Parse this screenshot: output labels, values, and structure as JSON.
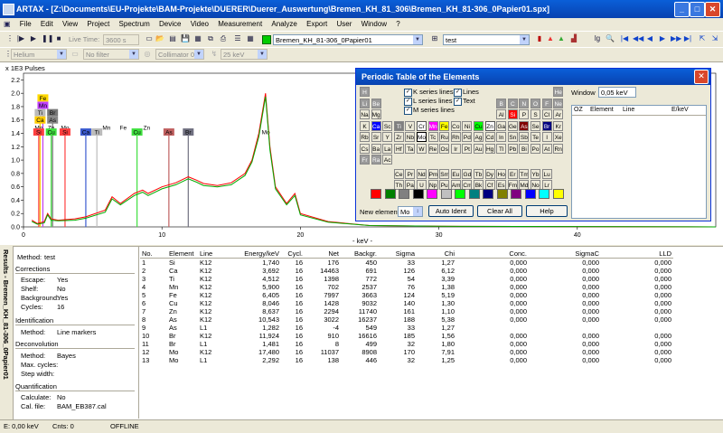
{
  "window": {
    "title": "ARTAX - [Z:\\Documents\\EU-Projekte\\BAM-Projekte\\DUERER\\Duerer_Auswertung\\Bremen_KH_81_306\\Bremen_KH_81-306_0Papier01.spx]"
  },
  "menu": [
    "File",
    "Edit",
    "View",
    "Project",
    "Spectrum",
    "Device",
    "Video",
    "Measurement",
    "Analyze",
    "Export",
    "User",
    "Window",
    "?"
  ],
  "toolbar": {
    "live_time_label": "Live Time:",
    "live_time_value": "3600 s",
    "spectrum_select": "Bremen_KH_81-306_0Papier01",
    "project_select": "test",
    "gas_select": "Helium",
    "filter_select": "No filter",
    "collimator_select": "Collimator 0.200",
    "voltage_select": "25 keV"
  },
  "chart_data": {
    "type": "line",
    "title": "",
    "ylabel": "x 1E3 Pulses",
    "xlabel": "- keV -",
    "xlim": [
      0,
      50
    ],
    "ylim": [
      0,
      2.3
    ],
    "x_ticks": [
      0,
      10,
      20,
      30,
      40
    ],
    "y_ticks": [
      0.0,
      0.2,
      0.4,
      0.6,
      0.8,
      1.0,
      1.2,
      1.4,
      1.6,
      1.8,
      2.0,
      2.2
    ],
    "y_tick_labels": [
      "0.0",
      "0.2",
      "0.4",
      "0.6",
      "0.8",
      "1.0",
      "1.2",
      "1.4",
      "1.6",
      "1.8",
      "2.0",
      "2.2"
    ],
    "series": [
      {
        "color": "#ff0000",
        "points": [
          [
            0.6,
            0.1
          ],
          [
            1.0,
            0.05
          ],
          [
            1.5,
            0.08
          ],
          [
            1.74,
            0.2
          ],
          [
            2.0,
            0.12
          ],
          [
            2.5,
            0.1
          ],
          [
            3.7,
            0.12
          ],
          [
            4.5,
            0.15
          ],
          [
            5.9,
            0.25
          ],
          [
            6.4,
            0.45
          ],
          [
            7.0,
            0.35
          ],
          [
            8.0,
            0.5
          ],
          [
            8.6,
            0.55
          ],
          [
            9.0,
            0.5
          ],
          [
            10.0,
            0.6
          ],
          [
            11.0,
            0.66
          ],
          [
            11.9,
            0.75
          ],
          [
            12.5,
            0.7
          ],
          [
            13.0,
            0.65
          ],
          [
            14.0,
            0.62
          ],
          [
            15.0,
            0.66
          ],
          [
            16.0,
            0.8
          ],
          [
            16.5,
            1.0
          ],
          [
            17.0,
            1.4
          ],
          [
            17.48,
            2.0
          ],
          [
            17.8,
            1.2
          ],
          [
            18.2,
            0.6
          ],
          [
            19.0,
            0.35
          ],
          [
            19.6,
            0.5
          ],
          [
            20.0,
            0.2
          ],
          [
            22,
            0.08
          ],
          [
            25,
            0.02
          ],
          [
            30,
            0.01
          ],
          [
            50,
            0.0
          ]
        ]
      },
      {
        "color": "#00aa00",
        "points": [
          [
            0.6,
            0.08
          ],
          [
            1.0,
            0.04
          ],
          [
            1.5,
            0.06
          ],
          [
            1.74,
            0.18
          ],
          [
            2.0,
            0.1
          ],
          [
            2.5,
            0.09
          ],
          [
            3.7,
            0.1
          ],
          [
            4.5,
            0.13
          ],
          [
            5.9,
            0.22
          ],
          [
            6.4,
            0.42
          ],
          [
            7.0,
            0.33
          ],
          [
            8.0,
            0.47
          ],
          [
            8.6,
            0.52
          ],
          [
            9.0,
            0.47
          ],
          [
            10.0,
            0.57
          ],
          [
            11.0,
            0.63
          ],
          [
            11.9,
            0.72
          ],
          [
            12.5,
            0.67
          ],
          [
            13.0,
            0.62
          ],
          [
            14.0,
            0.6
          ],
          [
            15.0,
            0.63
          ],
          [
            16.0,
            0.77
          ],
          [
            16.5,
            0.97
          ],
          [
            17.0,
            1.35
          ],
          [
            17.48,
            1.95
          ],
          [
            17.8,
            1.15
          ],
          [
            18.2,
            0.57
          ],
          [
            19.0,
            0.33
          ],
          [
            19.6,
            0.47
          ],
          [
            20.0,
            0.18
          ],
          [
            22,
            0.07
          ],
          [
            25,
            0.02
          ],
          [
            30,
            0.01
          ],
          [
            50,
            0.0
          ]
        ]
      }
    ],
    "element_markers": [
      {
        "label": "Fe",
        "x": 1.4,
        "y": 1.93,
        "color": "#ffd800"
      },
      {
        "label": "Mn",
        "x": 1.4,
        "y": 1.82,
        "color": "#c040ff"
      },
      {
        "label": "Ti",
        "x": 1.2,
        "y": 1.71,
        "color": "#bbbbbb"
      },
      {
        "label": "Br",
        "x": 2.1,
        "y": 1.71,
        "color": "#777777"
      },
      {
        "label": "Ca",
        "x": 1.2,
        "y": 1.6,
        "color": "#ffcc00"
      },
      {
        "label": "As",
        "x": 2.1,
        "y": 1.6,
        "color": "#888888"
      },
      {
        "label": "Mo",
        "x": 1.1,
        "y": 1.49,
        "color": "none"
      },
      {
        "label": "Zn",
        "x": 2.0,
        "y": 1.49,
        "color": "none"
      },
      {
        "label": "Mo",
        "x": 3.0,
        "y": 1.49,
        "color": "none"
      },
      {
        "label": "Si",
        "x": 1.1,
        "y": 1.42,
        "color": "#ff4040"
      },
      {
        "label": "Cu",
        "x": 2.0,
        "y": 1.42,
        "color": "#40e040"
      },
      {
        "label": "Si",
        "x": 3.0,
        "y": 1.42,
        "color": "#ff4040"
      },
      {
        "label": "Mn",
        "x": 6.0,
        "y": 1.49,
        "color": "none"
      },
      {
        "label": "Zn",
        "x": 8.9,
        "y": 1.49,
        "color": "none"
      },
      {
        "label": "Ca",
        "x": 4.5,
        "y": 1.42,
        "color": "#3b5bd0"
      },
      {
        "label": "Ti",
        "x": 5.3,
        "y": 1.42,
        "color": "#bbbbbb"
      },
      {
        "label": "Fe",
        "x": 7.2,
        "y": 1.49,
        "color": "none"
      },
      {
        "label": "Cu",
        "x": 8.2,
        "y": 1.42,
        "color": "#40e040"
      },
      {
        "label": "As",
        "x": 10.5,
        "y": 1.42,
        "color": "#c06060"
      },
      {
        "label": "Br",
        "x": 11.9,
        "y": 1.42,
        "color": "#707080"
      },
      {
        "label": "Mo",
        "x": 17.5,
        "y": 1.42,
        "color": "none"
      }
    ]
  },
  "dialog": {
    "title": "Periodic Table of the Elements",
    "checks": [
      {
        "label": "K series lines",
        "checked": true
      },
      {
        "label": "L series lines",
        "checked": true
      },
      {
        "label": "M series lines",
        "checked": true
      },
      {
        "label": "Lines",
        "checked": true
      },
      {
        "label": "Text",
        "checked": true
      }
    ],
    "window_label": "Window",
    "window_value": "0,05 keV",
    "table_headers": [
      "OZ",
      "Element",
      "Line",
      "E/keV"
    ],
    "new_element_label": "New element:",
    "new_element_value": "Mo",
    "auto_ident": "Auto Ident",
    "clear_all": "Clear All",
    "help": "Help",
    "swatches": [
      "#ff0000",
      "#008000",
      "#808080",
      "#000000",
      "#ff00ff",
      "#c0c0c0",
      "#00ff00",
      "#008080",
      "#000080",
      "#808000",
      "#800080",
      "#0000ff",
      "#00ffff",
      "#ffff00"
    ]
  },
  "elements": [
    {
      "s": "H",
      "r": 0,
      "c": 0,
      "st": "g"
    },
    {
      "s": "He",
      "r": 0,
      "c": 17,
      "st": "g"
    },
    {
      "s": "Li",
      "r": 1,
      "c": 0,
      "st": "g"
    },
    {
      "s": "Be",
      "r": 1,
      "c": 1,
      "st": "g"
    },
    {
      "s": "B",
      "r": 1,
      "c": 12,
      "st": "g"
    },
    {
      "s": "C",
      "r": 1,
      "c": 13,
      "st": "g"
    },
    {
      "s": "N",
      "r": 1,
      "c": 14,
      "st": "g"
    },
    {
      "s": "O",
      "r": 1,
      "c": 15,
      "st": "g"
    },
    {
      "s": "F",
      "r": 1,
      "c": 16,
      "st": "g"
    },
    {
      "s": "Ne",
      "r": 1,
      "c": 17,
      "st": "g"
    },
    {
      "s": "Na",
      "r": 2,
      "c": 0
    },
    {
      "s": "Mg",
      "r": 2,
      "c": 1
    },
    {
      "s": "Al",
      "r": 2,
      "c": 12
    },
    {
      "s": "Si",
      "r": 2,
      "c": 13,
      "bg": "#ff0000",
      "fg": "#fff"
    },
    {
      "s": "P",
      "r": 2,
      "c": 14
    },
    {
      "s": "S",
      "r": 2,
      "c": 15
    },
    {
      "s": "Cl",
      "r": 2,
      "c": 16
    },
    {
      "s": "Ar",
      "r": 2,
      "c": 17
    },
    {
      "s": "K",
      "r": 3,
      "c": 0
    },
    {
      "s": "Ca",
      "r": 3,
      "c": 1,
      "bg": "#0000ff",
      "fg": "#fff"
    },
    {
      "s": "Sc",
      "r": 3,
      "c": 2
    },
    {
      "s": "Ti",
      "r": 3,
      "c": 3,
      "bg": "#808080",
      "fg": "#fff"
    },
    {
      "s": "V",
      "r": 3,
      "c": 4
    },
    {
      "s": "Cr",
      "r": 3,
      "c": 5,
      "st": "b"
    },
    {
      "s": "Mn",
      "r": 3,
      "c": 6,
      "bg": "#ff00ff",
      "fg": "#fff"
    },
    {
      "s": "Fe",
      "r": 3,
      "c": 7,
      "bg": "#ffff00"
    },
    {
      "s": "Co",
      "r": 3,
      "c": 8
    },
    {
      "s": "Ni",
      "r": 3,
      "c": 9
    },
    {
      "s": "Cu",
      "r": 3,
      "c": 10,
      "bg": "#00ff00"
    },
    {
      "s": "Zn",
      "r": 3,
      "c": 11,
      "st": "b"
    },
    {
      "s": "Ga",
      "r": 3,
      "c": 12
    },
    {
      "s": "Ge",
      "r": 3,
      "c": 13
    },
    {
      "s": "As",
      "r": 3,
      "c": 14,
      "bg": "#800000",
      "fg": "#fff"
    },
    {
      "s": "Se",
      "r": 3,
      "c": 15
    },
    {
      "s": "Br",
      "r": 3,
      "c": 16,
      "bg": "#000080",
      "fg": "#fff"
    },
    {
      "s": "Kr",
      "r": 3,
      "c": 17
    },
    {
      "s": "Rb",
      "r": 4,
      "c": 0
    },
    {
      "s": "Sr",
      "r": 4,
      "c": 1
    },
    {
      "s": "Y",
      "r": 4,
      "c": 2
    },
    {
      "s": "Zr",
      "r": 4,
      "c": 3
    },
    {
      "s": "Nb",
      "r": 4,
      "c": 4
    },
    {
      "s": "Mo",
      "r": 4,
      "c": 5,
      "bg": "#fff",
      "bd": "#000"
    },
    {
      "s": "Tc",
      "r": 4,
      "c": 6
    },
    {
      "s": "Ru",
      "r": 4,
      "c": 7
    },
    {
      "s": "Rh",
      "r": 4,
      "c": 8
    },
    {
      "s": "Pd",
      "r": 4,
      "c": 9
    },
    {
      "s": "Ag",
      "r": 4,
      "c": 10
    },
    {
      "s": "Cd",
      "r": 4,
      "c": 11
    },
    {
      "s": "In",
      "r": 4,
      "c": 12
    },
    {
      "s": "Sn",
      "r": 4,
      "c": 13
    },
    {
      "s": "Sb",
      "r": 4,
      "c": 14
    },
    {
      "s": "Te",
      "r": 4,
      "c": 15
    },
    {
      "s": "I",
      "r": 4,
      "c": 16
    },
    {
      "s": "Xe",
      "r": 4,
      "c": 17
    },
    {
      "s": "Cs",
      "r": 5,
      "c": 0
    },
    {
      "s": "Ba",
      "r": 5,
      "c": 1
    },
    {
      "s": "La",
      "r": 5,
      "c": 2
    },
    {
      "s": "Hf",
      "r": 5,
      "c": 3
    },
    {
      "s": "Ta",
      "r": 5,
      "c": 4
    },
    {
      "s": "W",
      "r": 5,
      "c": 5
    },
    {
      "s": "Re",
      "r": 5,
      "c": 6
    },
    {
      "s": "Os",
      "r": 5,
      "c": 7
    },
    {
      "s": "Ir",
      "r": 5,
      "c": 8
    },
    {
      "s": "Pt",
      "r": 5,
      "c": 9
    },
    {
      "s": "Au",
      "r": 5,
      "c": 10
    },
    {
      "s": "Hg",
      "r": 5,
      "c": 11
    },
    {
      "s": "Tl",
      "r": 5,
      "c": 12
    },
    {
      "s": "Pb",
      "r": 5,
      "c": 13
    },
    {
      "s": "Bi",
      "r": 5,
      "c": 14
    },
    {
      "s": "Po",
      "r": 5,
      "c": 15
    },
    {
      "s": "At",
      "r": 5,
      "c": 16
    },
    {
      "s": "Rn",
      "r": 5,
      "c": 17
    },
    {
      "s": "Fr",
      "r": 6,
      "c": 0,
      "st": "g"
    },
    {
      "s": "Ra",
      "r": 6,
      "c": 1,
      "st": "g"
    },
    {
      "s": "Ac",
      "r": 6,
      "c": 2
    },
    {
      "s": "Ce",
      "r": 7,
      "c": 3
    },
    {
      "s": "Pr",
      "r": 7,
      "c": 4
    },
    {
      "s": "Nd",
      "r": 7,
      "c": 5
    },
    {
      "s": "Pm",
      "r": 7,
      "c": 6
    },
    {
      "s": "Sm",
      "r": 7,
      "c": 7
    },
    {
      "s": "Eu",
      "r": 7,
      "c": 8
    },
    {
      "s": "Gd",
      "r": 7,
      "c": 9
    },
    {
      "s": "Tb",
      "r": 7,
      "c": 10
    },
    {
      "s": "Dy",
      "r": 7,
      "c": 11
    },
    {
      "s": "Ho",
      "r": 7,
      "c": 12
    },
    {
      "s": "Er",
      "r": 7,
      "c": 13
    },
    {
      "s": "Tm",
      "r": 7,
      "c": 14
    },
    {
      "s": "Yb",
      "r": 7,
      "c": 15
    },
    {
      "s": "Lu",
      "r": 7,
      "c": 16
    },
    {
      "s": "Th",
      "r": 8,
      "c": 3
    },
    {
      "s": "Pa",
      "r": 8,
      "c": 4
    },
    {
      "s": "U",
      "r": 8,
      "c": 5
    },
    {
      "s": "Np",
      "r": 8,
      "c": 6
    },
    {
      "s": "Pu",
      "r": 8,
      "c": 7
    },
    {
      "s": "Am",
      "r": 8,
      "c": 8
    },
    {
      "s": "Cm",
      "r": 8,
      "c": 9
    },
    {
      "s": "Bk",
      "r": 8,
      "c": 10
    },
    {
      "s": "Cf",
      "r": 8,
      "c": 11
    },
    {
      "s": "Es",
      "r": 8,
      "c": 12
    },
    {
      "s": "Fm",
      "r": 8,
      "c": 13
    },
    {
      "s": "Md",
      "r": 8,
      "c": 14
    },
    {
      "s": "No",
      "r": 8,
      "c": 15
    },
    {
      "s": "Lr",
      "r": 8,
      "c": 16
    }
  ],
  "side_tab": "Results - Bremen_KH_81-306_0Papier01",
  "left_panel": {
    "method_label": "Method:",
    "method": "test",
    "corrections": "Corrections",
    "escape_label": "Escape:",
    "escape": "Yes",
    "shelf_label": "Shelf:",
    "shelf": "No",
    "background_label": "Background:",
    "background": "Yes",
    "cycles_label": "Cycles:",
    "cycles": "16",
    "identification": "Identification",
    "id_method_label": "Method:",
    "id_method": "Line markers",
    "deconvolution": "Deconvolution",
    "dc_method_label": "Method:",
    "dc_method": "Bayes",
    "max_cycles_label": "Max. cycles:",
    "step_width_label": "Step width:",
    "quantification": "Quantification",
    "calculate_label": "Calculate:",
    "calculate": "No",
    "cal_file_label": "Cal. file:",
    "cal_file": "BAM_EB387.cal"
  },
  "results": {
    "headers": [
      "No.",
      "Element",
      "Line",
      "Energy/keV",
      "Cycl.",
      "Net",
      "Backgr.",
      "Sigma",
      "Chi",
      "Conc.",
      "SigmaC",
      "LLD"
    ],
    "rows": [
      [
        "1",
        "Si",
        "K12",
        "1,740",
        "16",
        "176",
        "450",
        "33",
        "1,27",
        "0,000",
        "0,000",
        "0,000"
      ],
      [
        "2",
        "Ca",
        "K12",
        "3,692",
        "16",
        "14463",
        "691",
        "126",
        "6,12",
        "0,000",
        "0,000",
        "0,000"
      ],
      [
        "3",
        "Ti",
        "K12",
        "4,512",
        "16",
        "1398",
        "772",
        "54",
        "3,39",
        "0,000",
        "0,000",
        "0,000"
      ],
      [
        "4",
        "Mn",
        "K12",
        "5,900",
        "16",
        "702",
        "2537",
        "76",
        "1,38",
        "0,000",
        "0,000",
        "0,000"
      ],
      [
        "5",
        "Fe",
        "K12",
        "6,405",
        "16",
        "7997",
        "3663",
        "124",
        "5,19",
        "0,000",
        "0,000",
        "0,000"
      ],
      [
        "6",
        "Cu",
        "K12",
        "8,046",
        "16",
        "1428",
        "9032",
        "140",
        "1,30",
        "0,000",
        "0,000",
        "0,000"
      ],
      [
        "7",
        "Zn",
        "K12",
        "8,637",
        "16",
        "2294",
        "11740",
        "161",
        "1,10",
        "0,000",
        "0,000",
        "0,000"
      ],
      [
        "8",
        "As",
        "K12",
        "10,543",
        "16",
        "3022",
        "16237",
        "188",
        "5,38",
        "0,000",
        "0,000",
        "0,000"
      ],
      [
        "9",
        "As",
        "L1",
        "1,282",
        "16",
        "-4",
        "549",
        "33",
        "1,27",
        "",
        "",
        ""
      ],
      [
        "10",
        "Br",
        "K12",
        "11,924",
        "16",
        "910",
        "16616",
        "185",
        "1,56",
        "0,000",
        "0,000",
        "0,000"
      ],
      [
        "11",
        "Br",
        "L1",
        "1,481",
        "16",
        "8",
        "499",
        "32",
        "1,80",
        "0,000",
        "0,000",
        "0,000"
      ],
      [
        "12",
        "Mo",
        "K12",
        "17,480",
        "16",
        "11037",
        "8908",
        "170",
        "7,91",
        "0,000",
        "0,000",
        "0,000"
      ],
      [
        "13",
        "Mo",
        "L1",
        "2,292",
        "16",
        "138",
        "446",
        "32",
        "1,25",
        "0,000",
        "0,000",
        "0,000"
      ]
    ]
  },
  "status": {
    "energy": "E: 0,00 keV",
    "counts": "Cnts: 0",
    "mode": "OFFLINE"
  }
}
